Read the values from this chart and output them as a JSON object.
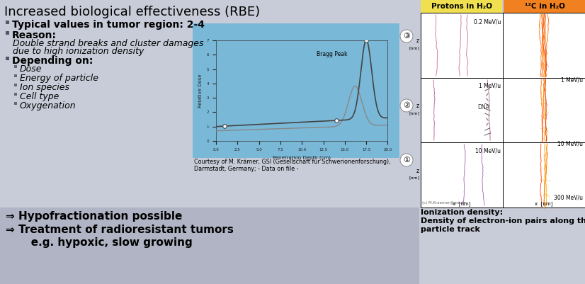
{
  "bg_color": "#c8ccd8",
  "bottom_panel_bg": "#b0b4c4",
  "title": "Increased biological effectiveness (RBE)",
  "proton_header": "Protons in H₂O",
  "carbon_header": "¹²C in H₂O",
  "proton_header_bg": "#f0e050",
  "carbon_header_bg": "#f08020",
  "bragg_plot_bg": "#7ab8d8",
  "courtesy_text": "Courtesy of M. Krämer, GSI (Gesellschaft für Schwerionenforschung),\nDarmstadt, Germany; - Data on file -",
  "ionization_line1": "Ionization density:",
  "ionization_line2": "Density of electron-ion pairs along the",
  "ionization_line3": "particle track",
  "bottom_line1": "⇒ Hypofractionation possible",
  "bottom_line2": "⇒ Treatment of radioresistant tumors",
  "bottom_line3": "   e.g. hypoxic, slow growing",
  "sub_items": [
    "Dose",
    "Energy of particle",
    "Ion species",
    "Cell type",
    "Oxygenation"
  ],
  "panel_labels_L": [
    "0.2 MeV/u",
    "1 MeV/u",
    "10 MeV/u"
  ],
  "panel_labels_R": [
    "1 MeV/u",
    "10 MeV/u",
    "300 MeV/u"
  ]
}
